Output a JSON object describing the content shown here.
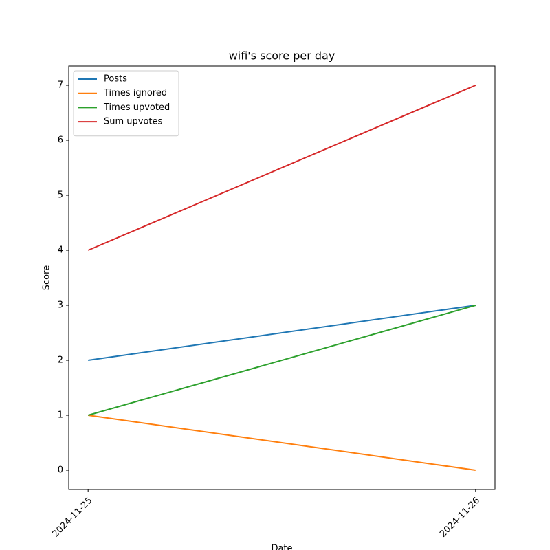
{
  "chart_data": {
    "type": "line",
    "title": "wifi's score per day",
    "xlabel": "Date",
    "ylabel": "Score",
    "categories": [
      "2024-11-25",
      "2024-11-26"
    ],
    "series": [
      {
        "name": "Posts",
        "color": "#1f77b4",
        "values": [
          2,
          3
        ]
      },
      {
        "name": "Times ignored",
        "color": "#ff7f0e",
        "values": [
          1,
          0
        ]
      },
      {
        "name": "Times upvoted",
        "color": "#2ca02c",
        "values": [
          1,
          3
        ]
      },
      {
        "name": "Sum upvotes",
        "color": "#d62728",
        "values": [
          4,
          7
        ]
      }
    ],
    "ylim": [
      -0.35,
      7.35
    ],
    "yticks": [
      0,
      1,
      2,
      3,
      4,
      5,
      6,
      7
    ],
    "grid": false,
    "legend": "upper left"
  }
}
